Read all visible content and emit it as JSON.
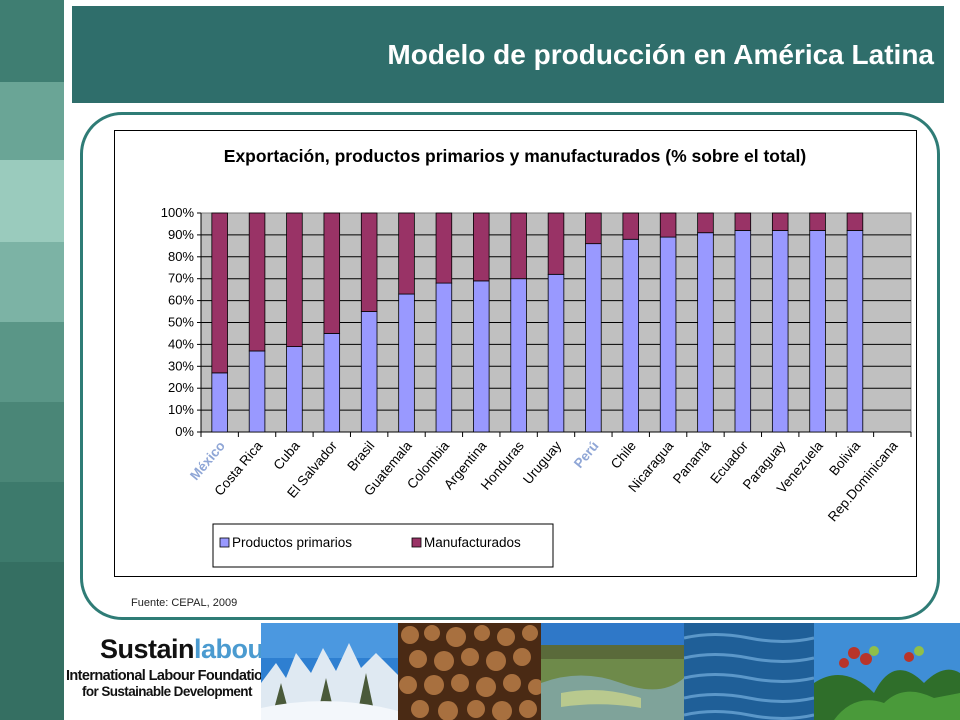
{
  "slide": {
    "title": "Modelo de producción en América Latina",
    "source": "Fuente: CEPAL, 2009"
  },
  "logo": {
    "word_part1": "Sustain",
    "word_part2": "labour",
    "line1": "International Labour Foundation",
    "line2": "for Sustainable Development"
  },
  "colors": {
    "primarios": "#9999ff",
    "manufacturados": "#993366",
    "plot_bg": "#c0c0c0",
    "title_bar": "#2f6e6b",
    "sidebar": "#4f8d80"
  },
  "chart_data": {
    "type": "bar",
    "stacked": true,
    "title": "Exportación, productos primarios y manufacturados (% sobre el total)",
    "categories": [
      "México",
      "Costa Rica",
      "Cuba",
      "El Salvador",
      "Brasil",
      "Guatemala",
      "Colombia",
      "Argentina",
      "Honduras",
      "Uruguay",
      "Perú",
      "Chile",
      "Nicaragua",
      "Panamá",
      "Ecuador",
      "Paraguay",
      "Venezuela",
      "Bolivia",
      "Rep.Dominicana"
    ],
    "series": [
      {
        "name": "Productos primarios",
        "values": [
          27,
          37,
          39,
          45,
          55,
          63,
          68,
          69,
          70,
          72,
          86,
          88,
          89,
          91,
          92,
          92,
          92,
          92,
          null
        ]
      },
      {
        "name": "Manufacturados",
        "values": [
          73,
          63,
          61,
          55,
          45,
          37,
          32,
          31,
          30,
          28,
          14,
          12,
          11,
          9,
          8,
          8,
          8,
          8,
          null
        ]
      }
    ],
    "ylim": [
      0,
      100
    ],
    "yticks": [
      "0%",
      "10%",
      "20%",
      "30%",
      "40%",
      "50%",
      "60%",
      "70%",
      "80%",
      "90%",
      "100%"
    ],
    "legend_position": "bottom-left",
    "grid": true
  }
}
